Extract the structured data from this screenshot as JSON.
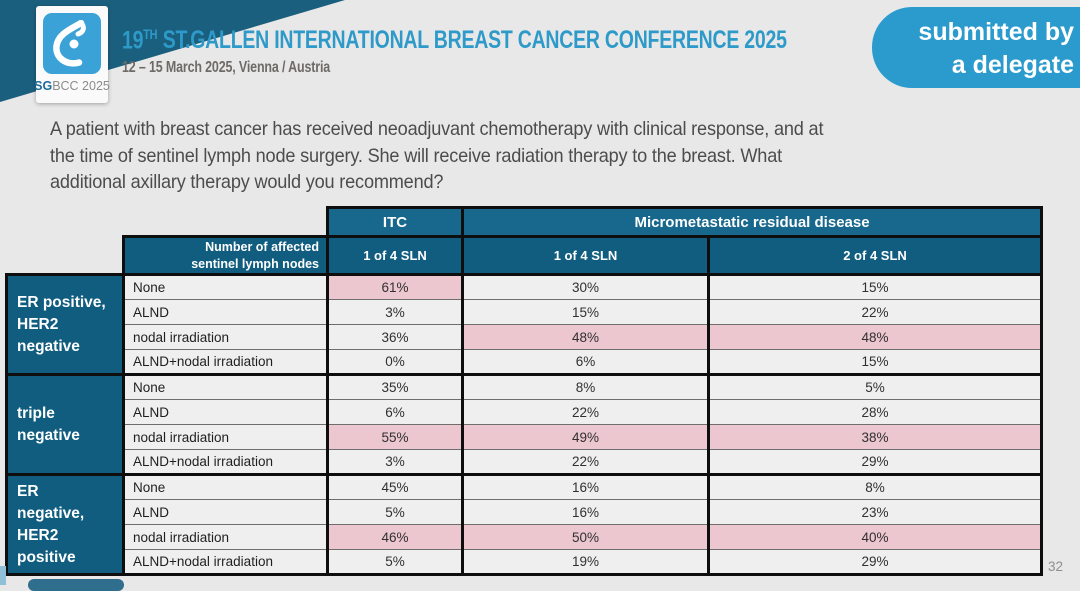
{
  "colors": {
    "slide_background": "#E8E8E8",
    "accent_blue": "#2B9BCE",
    "title_blue": "#2E9AC9",
    "header_teal_top": "#17688C",
    "header_teal": "#115D80",
    "corner_band_teal": "#1B5F7E",
    "highlight_pink": "#EDC7CF",
    "cell_gray": "#EFEFEF"
  },
  "header": {
    "logo": {
      "sg": "SG",
      "bcc": "BCC 2025"
    },
    "title_number": "19",
    "title_superscript": "TH",
    "title_rest": "ST.GALLEN INTERNATIONAL BREAST CANCER CONFERENCE 2025",
    "subtitle": "12 – 15 March 2025, Vienna / Austria",
    "badge": {
      "line1": "submitted by",
      "line2": "a delegate"
    }
  },
  "chart_data": {
    "type": "table",
    "question": "A patient with breast cancer has received neoadjuvant chemotherapy with clinical response, and at\nthe time of sentinel lymph node surgery.  She will receive radiation therapy to the breast.  What\nadditional axillary therapy would you recommend?",
    "col_groups": [
      {
        "label": "ITC",
        "span": 1
      },
      {
        "label": "Micrometastatic residual disease",
        "span": 2
      }
    ],
    "corner_header": "Number of affected\nsentinel lymph nodes",
    "sub_columns": [
      "1 of 4 SLN",
      "1 of 4 SLN",
      "2 of 4 SLN"
    ],
    "row_groups": [
      {
        "label": "ER positive,\nHER2\nnegative",
        "rows": [
          {
            "label": "None",
            "values": [
              "61%",
              "30%",
              "15%"
            ],
            "highlight": [
              true,
              false,
              false
            ]
          },
          {
            "label": "ALND",
            "values": [
              "3%",
              "15%",
              "22%"
            ],
            "highlight": [
              false,
              false,
              false
            ]
          },
          {
            "label": "nodal irradiation",
            "values": [
              "36%",
              "48%",
              "48%"
            ],
            "highlight": [
              false,
              true,
              true
            ]
          },
          {
            "label": "ALND+nodal irradiation",
            "values": [
              "0%",
              "6%",
              "15%"
            ],
            "highlight": [
              false,
              false,
              false
            ]
          }
        ]
      },
      {
        "label": "triple\nnegative",
        "rows": [
          {
            "label": "None",
            "values": [
              "35%",
              "8%",
              "5%"
            ],
            "highlight": [
              false,
              false,
              false
            ]
          },
          {
            "label": "ALND",
            "values": [
              "6%",
              "22%",
              "28%"
            ],
            "highlight": [
              false,
              false,
              false
            ]
          },
          {
            "label": "nodal irradiation",
            "values": [
              "55%",
              "49%",
              "38%"
            ],
            "highlight": [
              true,
              true,
              true
            ]
          },
          {
            "label": "ALND+nodal irradiation",
            "values": [
              "3%",
              "22%",
              "29%"
            ],
            "highlight": [
              false,
              false,
              false
            ]
          }
        ]
      },
      {
        "label": "ER\nnegative,\nHER2\npositive",
        "rows": [
          {
            "label": "None",
            "values": [
              "45%",
              "16%",
              "8%"
            ],
            "highlight": [
              false,
              false,
              false
            ]
          },
          {
            "label": "ALND",
            "values": [
              "5%",
              "16%",
              "23%"
            ],
            "highlight": [
              false,
              false,
              false
            ]
          },
          {
            "label": "nodal irradiation",
            "values": [
              "46%",
              "50%",
              "40%"
            ],
            "highlight": [
              true,
              true,
              true
            ]
          },
          {
            "label": "ALND+nodal irradiation",
            "values": [
              "5%",
              "19%",
              "29%"
            ],
            "highlight": [
              false,
              false,
              false
            ]
          }
        ]
      }
    ]
  },
  "footer": {
    "page_number": "32"
  }
}
